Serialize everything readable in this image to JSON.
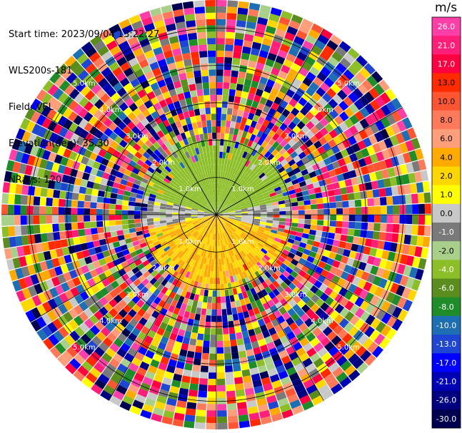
{
  "header": {
    "start_time": "Start time: 2023/09/04 13:22:27",
    "instrument": "WLS200s-181",
    "field": "Field: VEL",
    "elevation": "Elevation(deg): 35.30",
    "nrays": "NRays: 120"
  },
  "colorbar": {
    "unit": "m/s",
    "ticks": [
      "26.0",
      "21.0",
      "17.0",
      "13.0",
      "10.0",
      "8.0",
      "6.0",
      "4.0",
      "2.0",
      "1.0",
      "0.0",
      "-1.0",
      "-2.0",
      "-4.0",
      "-6.0",
      "-8.0",
      "-10.0",
      "-13.0",
      "-17.0",
      "-21.0",
      "-26.0",
      "-30.0"
    ],
    "colors": [
      "#ff3fa8",
      "#ff1f7a",
      "#ff0040",
      "#ff2a00",
      "#ff5533",
      "#ff7a5a",
      "#ff9e7a",
      "#ffaa00",
      "#ffd700",
      "#ffff00",
      "#c8c8c8",
      "#7a7a7a",
      "#a8d08a",
      "#8cbe28",
      "#5a8c1e",
      "#1e8c28",
      "#1e6eb4",
      "#1e46d2",
      "#0000ff",
      "#0000b4",
      "#000080",
      "#000050"
    ]
  },
  "chart_data": {
    "type": "heatmap",
    "title": "",
    "field": "VEL",
    "units": "m/s",
    "elevation_deg": 35.3,
    "nrays": 120,
    "range_rings_km": [
      1.0,
      2.0,
      3.0,
      4.0,
      5.0
    ],
    "range_ring_labels": [
      "1.0km",
      "2.0km",
      "3.0km",
      "4.0km",
      "5.0km"
    ],
    "clim": [
      -30.0,
      26.0
    ],
    "pattern": {
      "description_free": true,
      "inner_region_max_km": 2.0,
      "north_sector_velocity": -3.0,
      "south_sector_velocity": 4.0,
      "east_west_transition_velocity": 0.0
    }
  }
}
